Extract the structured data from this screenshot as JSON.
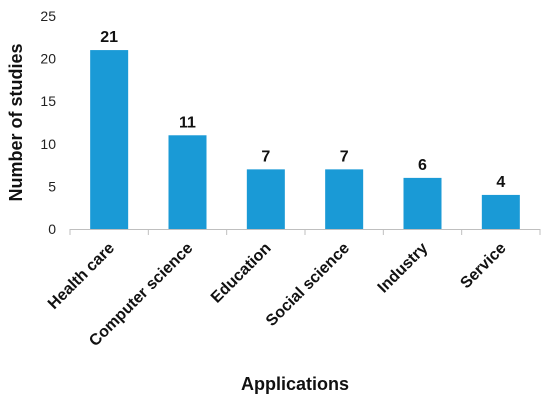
{
  "chart_data": {
    "type": "bar",
    "categories": [
      "Health care",
      "Computer science",
      "Education",
      "Social science",
      "Industry",
      "Service"
    ],
    "values": [
      21,
      11,
      7,
      7,
      6,
      4
    ],
    "xlabel": "Applications",
    "ylabel": "Number of studies",
    "ylim": [
      0,
      25
    ],
    "yticks": [
      0,
      5,
      10,
      15,
      20,
      25
    ],
    "grid": false,
    "bar_color": "#1a9ad6",
    "data_labels": true
  }
}
